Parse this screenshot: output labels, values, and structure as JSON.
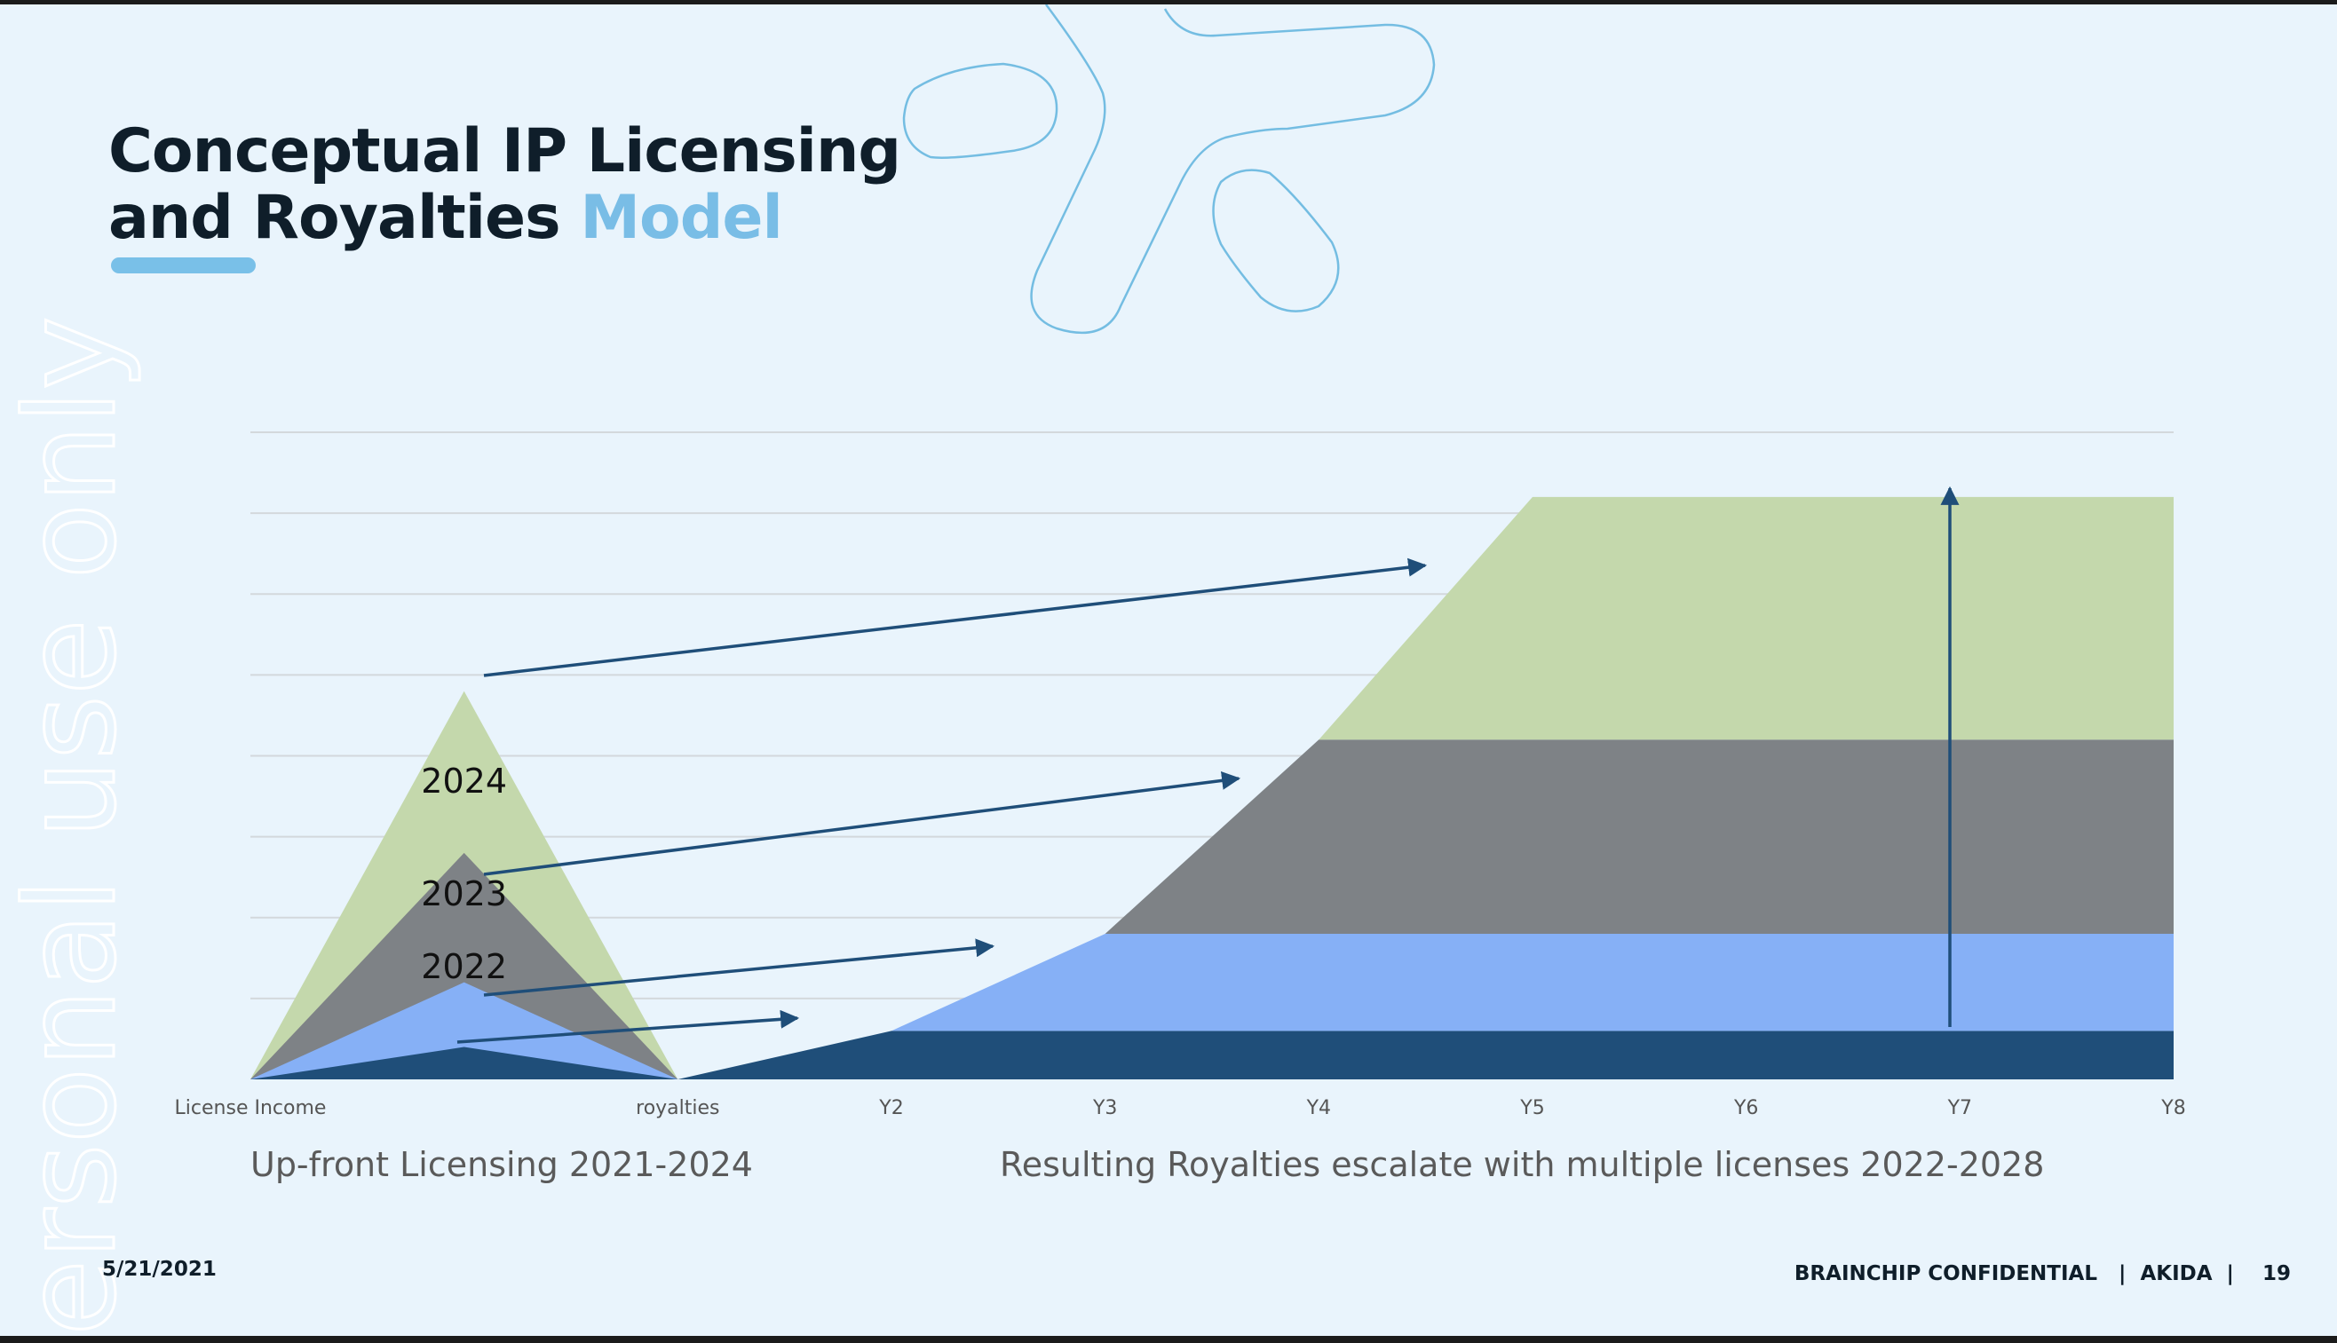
{
  "slide": {
    "title_line1": "Conceptual IP Licensing",
    "title_line2": "and Royalties",
    "title_accent": "Model",
    "watermark": "ersonal use only",
    "footer": {
      "date": "5/21/2021",
      "confidential": "BRAINCHIP CONFIDENTIAL",
      "product": "AKIDA",
      "page": "19"
    },
    "colors": {
      "background": "#e9f4fc",
      "title": "#0f1e2a",
      "accent": "#79bde6",
      "arrow": "#1f4e79"
    }
  },
  "chart_data": {
    "type": "area",
    "x_categories": [
      "License Income",
      "",
      "royalties",
      "Y2",
      "Y3",
      "Y4",
      "Y5",
      "Y6",
      "Y7",
      "Y8"
    ],
    "ylim": [
      0,
      8
    ],
    "grid": true,
    "axis_titles": {
      "left": "Up-front Licensing 2021-2024",
      "right": "Resulting Royalties escalate with multiple licenses 2022-2028"
    },
    "licensing": {
      "description": "Stacked license income peaks per year",
      "series": [
        {
          "name": "2024",
          "peak": 4.8,
          "color": "#c4d8ac"
        },
        {
          "name": "2023",
          "peak": 2.8,
          "color": "#7e8286"
        },
        {
          "name": "2022",
          "peak": 1.2,
          "color": "#86b0f6"
        },
        {
          "name": "",
          "peak": 0.4,
          "color": "#1f4e79"
        }
      ]
    },
    "royalties": {
      "x": [
        "royalties",
        "Y2",
        "Y3",
        "Y4",
        "Y5",
        "Y6",
        "Y7",
        "Y8"
      ],
      "series": [
        {
          "name": "",
          "values": [
            0,
            0.6,
            0.6,
            0.6,
            0.6,
            0.6,
            0.6,
            0.6
          ],
          "color": "#1f4e79"
        },
        {
          "name": "",
          "values": [
            0,
            0,
            1.2,
            1.2,
            1.2,
            1.2,
            1.2,
            1.2
          ],
          "color": "#86b0f6"
        },
        {
          "name": "",
          "values": [
            0,
            0,
            0,
            2.4,
            2.4,
            2.4,
            2.4,
            2.4
          ],
          "color": "#7e8286"
        },
        {
          "name": "",
          "values": [
            0,
            0,
            0,
            0,
            3.0,
            3.0,
            3.0,
            3.0
          ],
          "color": "#c4d8ac"
        }
      ]
    }
  }
}
